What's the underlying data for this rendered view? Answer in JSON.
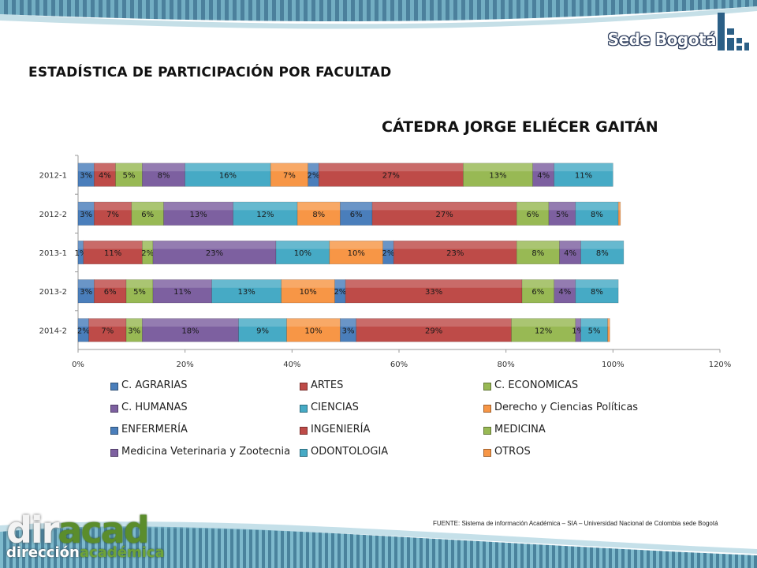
{
  "header": {
    "brand": "Sede Bogotá",
    "title": "ESTADÍSTICA DE PARTICIPACIÓN POR FACULTAD"
  },
  "footer": {
    "source": "FUENTE: Sistema de información Académica – SIA – Universidad Nacional de Colombia sede Bogotá",
    "logo_main_a": "dir",
    "logo_main_b": "acad",
    "logo_sub_a": "dirección",
    "logo_sub_b": "académica"
  },
  "chart_data": {
    "type": "bar",
    "orientation": "horizontal",
    "stacked": true,
    "title": "CÁTEDRA JORGE ELIÉCER GAITÁN",
    "categories": [
      "2012-1",
      "2012-2",
      "2013-1",
      "2013-2",
      "2014-2"
    ],
    "xlim": [
      0,
      120
    ],
    "xticks": [
      "0%",
      "20%",
      "40%",
      "60%",
      "80%",
      "100%",
      "120%"
    ],
    "legend_position": "bottom",
    "series": [
      {
        "name": "C. AGRARIAS",
        "color": "#4a7ebb",
        "values": [
          3,
          3,
          1,
          3,
          2
        ]
      },
      {
        "name": "ARTES",
        "color": "#be4b48",
        "values": [
          4,
          7,
          11,
          6,
          7
        ]
      },
      {
        "name": "C. ECONOMICAS",
        "color": "#98b954",
        "values": [
          5,
          6,
          2,
          5,
          3
        ]
      },
      {
        "name": "C. HUMANAS",
        "color": "#7d60a0",
        "values": [
          8,
          13,
          23,
          11,
          18
        ]
      },
      {
        "name": "CIENCIAS",
        "color": "#46aac5",
        "values": [
          16,
          12,
          10,
          13,
          9
        ]
      },
      {
        "name": "Derecho y Ciencias Políticas",
        "color": "#f79646",
        "values": [
          7,
          8,
          10,
          10,
          10
        ]
      },
      {
        "name": "ENFERMERÍA",
        "color": "#4a7ebb",
        "values": [
          2,
          6,
          2,
          2,
          3
        ]
      },
      {
        "name": "INGENIERÍA",
        "color": "#be4b48",
        "values": [
          27,
          27,
          23,
          33,
          29
        ]
      },
      {
        "name": "MEDICINA",
        "color": "#98b954",
        "values": [
          13,
          6,
          8,
          6,
          12
        ]
      },
      {
        "name": "Medicina Veterinaria y Zootecnia",
        "color": "#7d60a0",
        "values": [
          4,
          5,
          4,
          4,
          1
        ]
      },
      {
        "name": "ODONTOLOGIA",
        "color": "#46aac5",
        "values": [
          11,
          8,
          8,
          8,
          5
        ]
      },
      {
        "name": "OTROS",
        "color": "#f79646",
        "values": [
          0,
          0.4,
          0,
          0,
          0.4
        ]
      }
    ],
    "data_labels": [
      [
        "3%",
        "4%",
        "5%",
        "8%",
        "16%",
        "7%",
        "2%",
        "27%",
        "13%",
        "4%",
        "11%",
        ""
      ],
      [
        "3%",
        "7%",
        "6%",
        "13%",
        "12%",
        "8%",
        "6%",
        "27%",
        "6%",
        "5%",
        "8%",
        ""
      ],
      [
        "1%",
        "11%",
        "2%",
        "23%",
        "10%",
        "10%",
        "2%",
        "23%",
        "8%",
        "4%",
        "8%",
        ""
      ],
      [
        "3%",
        "6%",
        "5%",
        "11%",
        "13%",
        "10%",
        "2%",
        "33%",
        "6%",
        "4%",
        "8%",
        ""
      ],
      [
        "2%",
        "7%",
        "3%",
        "18%",
        "9%",
        "10%",
        "3%",
        "29%",
        "12%",
        "1%",
        "5%",
        ""
      ]
    ]
  }
}
